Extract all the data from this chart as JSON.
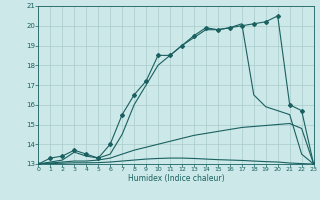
{
  "xlabel": "Humidex (Indice chaleur)",
  "xlim": [
    0,
    23
  ],
  "ylim": [
    13,
    21
  ],
  "yticks": [
    13,
    14,
    15,
    16,
    17,
    18,
    19,
    20,
    21
  ],
  "xticks": [
    0,
    1,
    2,
    3,
    4,
    5,
    6,
    7,
    8,
    9,
    10,
    11,
    12,
    13,
    14,
    15,
    16,
    17,
    18,
    19,
    20,
    21,
    22,
    23
  ],
  "bg_color": "#cce8e8",
  "grid_color": "#aacccc",
  "line_color": "#1a6060",
  "series": [
    {
      "x": [
        0,
        1,
        2,
        3,
        4,
        5,
        6,
        7,
        8,
        9,
        10,
        11,
        12,
        13,
        14,
        15,
        16,
        17,
        18,
        19,
        20,
        21,
        22,
        23
      ],
      "y": [
        13.0,
        13.3,
        13.4,
        13.7,
        13.5,
        13.3,
        14.0,
        15.5,
        16.5,
        17.2,
        18.5,
        18.5,
        19.0,
        19.5,
        19.9,
        19.8,
        19.9,
        20.0,
        20.1,
        20.2,
        20.5,
        16.0,
        15.7,
        13.0
      ],
      "marker": true
    },
    {
      "x": [
        0,
        1,
        2,
        3,
        4,
        5,
        6,
        7,
        8,
        9,
        10,
        11,
        12,
        13,
        14,
        15,
        16,
        17,
        18,
        19,
        20,
        21,
        22,
        23
      ],
      "y": [
        13.0,
        13.1,
        13.2,
        13.6,
        13.4,
        13.3,
        13.5,
        14.5,
        16.0,
        17.0,
        18.0,
        18.5,
        19.0,
        19.4,
        19.8,
        19.8,
        19.9,
        20.1,
        16.5,
        15.9,
        15.7,
        15.5,
        13.5,
        13.0
      ],
      "marker": false
    },
    {
      "x": [
        0,
        1,
        2,
        3,
        4,
        5,
        6,
        7,
        8,
        9,
        10,
        11,
        12,
        13,
        14,
        15,
        16,
        17,
        18,
        19,
        20,
        21,
        22,
        23
      ],
      "y": [
        13.0,
        13.05,
        13.1,
        13.15,
        13.15,
        13.2,
        13.3,
        13.5,
        13.7,
        13.85,
        14.0,
        14.15,
        14.3,
        14.45,
        14.55,
        14.65,
        14.75,
        14.85,
        14.9,
        14.95,
        15.0,
        15.05,
        14.8,
        13.0
      ],
      "marker": false
    },
    {
      "x": [
        0,
        1,
        2,
        3,
        4,
        5,
        6,
        7,
        8,
        9,
        10,
        11,
        12,
        13,
        14,
        15,
        16,
        17,
        18,
        19,
        20,
        21,
        22,
        23
      ],
      "y": [
        13.0,
        13.02,
        13.04,
        13.06,
        13.06,
        13.07,
        13.1,
        13.15,
        13.2,
        13.25,
        13.28,
        13.3,
        13.3,
        13.28,
        13.25,
        13.22,
        13.2,
        13.18,
        13.15,
        13.12,
        13.1,
        13.05,
        13.02,
        13.0
      ],
      "marker": false
    }
  ]
}
